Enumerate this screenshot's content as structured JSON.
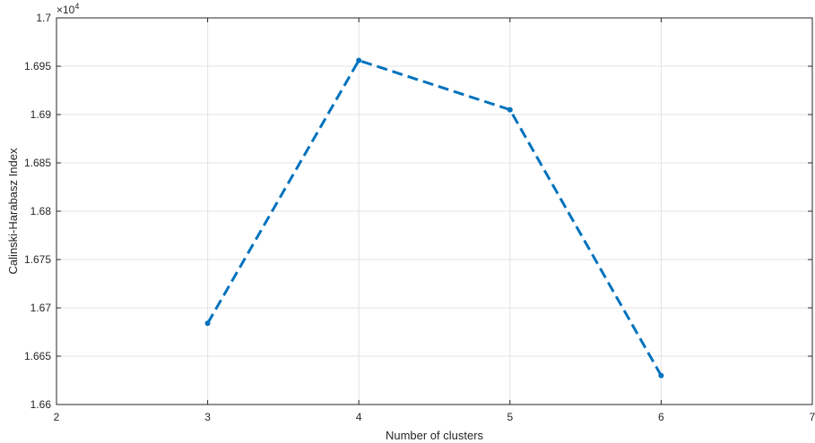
{
  "chart_data": {
    "type": "line",
    "x": [
      3,
      4,
      5,
      6
    ],
    "series": [
      {
        "values": [
          16684,
          16956,
          16905,
          16630
        ],
        "color": "#0072BD",
        "line_style": "dashed",
        "marker": "dot"
      }
    ],
    "xlabel": "Number of clusters",
    "ylabel": "Calinski-Harabasz Index",
    "xlim": [
      2,
      7
    ],
    "ylim": [
      16600,
      17000
    ],
    "x_ticks": [
      2,
      3,
      4,
      5,
      6,
      7
    ],
    "x_tick_labels": [
      "2",
      "3",
      "4",
      "5",
      "6",
      "7"
    ],
    "y_ticks": [
      16600,
      16650,
      16700,
      16750,
      16800,
      16850,
      16900,
      16950,
      17000
    ],
    "y_tick_labels": [
      "1.66",
      "1.665",
      "1.67",
      "1.675",
      "1.68",
      "1.685",
      "1.69",
      "1.695",
      "1.7"
    ],
    "y_multiplier": {
      "base": "×10",
      "exponent": "4"
    },
    "grid": true
  }
}
